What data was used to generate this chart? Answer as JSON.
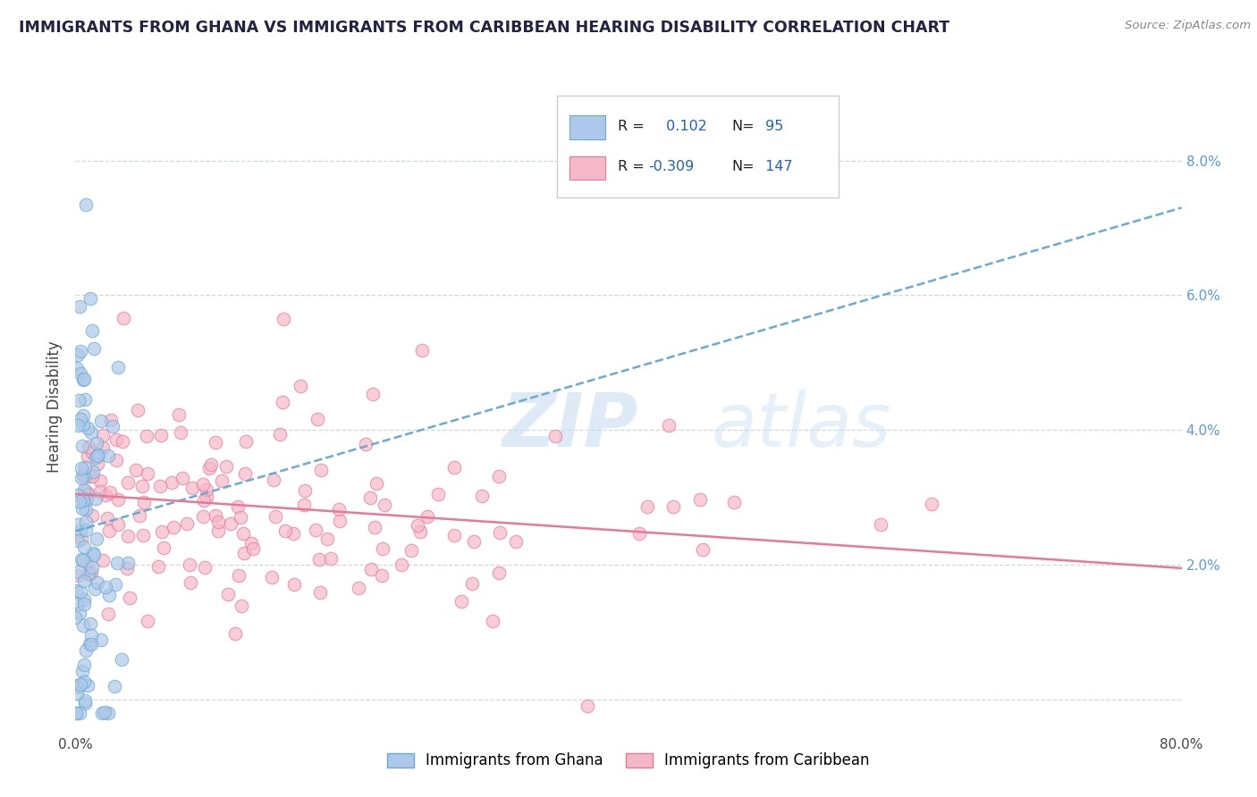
{
  "title": "IMMIGRANTS FROM GHANA VS IMMIGRANTS FROM CARIBBEAN HEARING DISABILITY CORRELATION CHART",
  "source_text": "Source: ZipAtlas.com",
  "ylabel": "Hearing Disability",
  "xlim": [
    0.0,
    0.8
  ],
  "ylim": [
    -0.005,
    0.092
  ],
  "yticks_right": [
    0.02,
    0.04,
    0.06,
    0.08
  ],
  "ytick_right_labels": [
    "2.0%",
    "4.0%",
    "6.0%",
    "8.0%"
  ],
  "ghana_R": 0.102,
  "ghana_N": 95,
  "caribbean_R": -0.309,
  "caribbean_N": 147,
  "ghana_face_color": "#adc8e8",
  "ghana_edge_color": "#6aaad4",
  "carib_face_color": "#f5b8c8",
  "carib_edge_color": "#e87898",
  "trend_ghana_color": "#6aaad4",
  "trend_carib_color": "#e87898",
  "watermark_color": "#c8dff0",
  "legend_r_color": "#2060c0",
  "background_color": "#ffffff",
  "grid_color": "#c8d8e8",
  "title_color": "#222244",
  "title_fontsize": 12.5
}
